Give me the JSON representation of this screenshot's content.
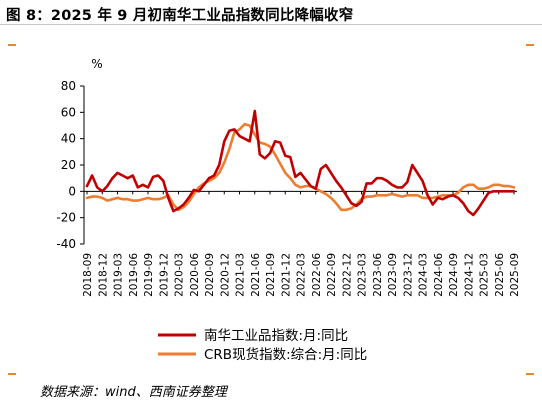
{
  "header": {
    "title": "图 8：2025 年 9 月初南华工业品指数同比降幅收窄"
  },
  "footer": {
    "source": "数据来源：wind、西南证券整理"
  },
  "colors": {
    "series1": "#c00000",
    "series2": "#ed7d31",
    "accent": "#e08a2f"
  },
  "chart_data": {
    "type": "line",
    "ylabel": "%",
    "ylim": [
      -40,
      80
    ],
    "yticks": [
      -40,
      -20,
      0,
      20,
      40,
      60,
      80
    ],
    "grid": false,
    "legend_position": "bottom",
    "x_tick_labels": [
      "2018-09",
      "2018-12",
      "2019-03",
      "2019-06",
      "2019-09",
      "2019-12",
      "2020-03",
      "2020-06",
      "2020-09",
      "2020-12",
      "2021-03",
      "2021-06",
      "2021-09",
      "2021-12",
      "2022-03",
      "2022-06",
      "2022-09",
      "2022-12",
      "2023-03",
      "2023-06",
      "2023-09",
      "2023-12",
      "2024-03",
      "2024-06",
      "2024-09",
      "2024-12",
      "2025-03",
      "2025-06",
      "2025-09"
    ],
    "x": [
      "2018-09",
      "2018-10",
      "2018-11",
      "2018-12",
      "2019-01",
      "2019-02",
      "2019-03",
      "2019-04",
      "2019-05",
      "2019-06",
      "2019-07",
      "2019-08",
      "2019-09",
      "2019-10",
      "2019-11",
      "2019-12",
      "2020-01",
      "2020-02",
      "2020-03",
      "2020-04",
      "2020-05",
      "2020-06",
      "2020-07",
      "2020-08",
      "2020-09",
      "2020-10",
      "2020-11",
      "2020-12",
      "2021-01",
      "2021-02",
      "2021-03",
      "2021-04",
      "2021-05",
      "2021-06",
      "2021-07",
      "2021-08",
      "2021-09",
      "2021-10",
      "2021-11",
      "2021-12",
      "2022-01",
      "2022-02",
      "2022-03",
      "2022-04",
      "2022-05",
      "2022-06",
      "2022-07",
      "2022-08",
      "2022-09",
      "2022-10",
      "2022-11",
      "2022-12",
      "2023-01",
      "2023-02",
      "2023-03",
      "2023-04",
      "2023-05",
      "2023-06",
      "2023-07",
      "2023-08",
      "2023-09",
      "2023-10",
      "2023-11",
      "2023-12",
      "2024-01",
      "2024-02",
      "2024-03",
      "2024-04",
      "2024-05",
      "2024-06",
      "2024-07",
      "2024-08",
      "2024-09",
      "2024-10",
      "2024-11",
      "2024-12",
      "2025-01",
      "2025-02",
      "2025-03",
      "2025-04",
      "2025-05",
      "2025-06",
      "2025-07",
      "2025-08",
      "2025-09"
    ],
    "series": [
      {
        "name": "南华工业品指数:月:同比",
        "values": [
          4,
          12,
          3,
          0,
          4,
          10,
          14,
          12,
          10,
          12,
          3,
          5,
          3,
          11,
          12,
          8,
          -5,
          -15,
          -13,
          -10,
          -5,
          1,
          0,
          5,
          10,
          12,
          20,
          38,
          46,
          47,
          42,
          40,
          38,
          61,
          28,
          25,
          29,
          38,
          37,
          27,
          26,
          11,
          14,
          9,
          4,
          2,
          17,
          20,
          14,
          8,
          3,
          -3,
          -9,
          -11,
          -8,
          6,
          6,
          10,
          10,
          8,
          5,
          3,
          3,
          7,
          20,
          14,
          8,
          -3,
          -10,
          -5,
          -6,
          -4,
          -3,
          -5,
          -9,
          -15,
          -18,
          -13,
          -7,
          -1,
          0,
          0,
          0,
          0,
          0
        ],
        "color": "#c00000"
      },
      {
        "name": "CRB现货指数:综合:月:同比",
        "values": [
          -5,
          -4,
          -4,
          -5,
          -7,
          -6,
          -5,
          -6,
          -6,
          -7,
          -7,
          -6,
          -5,
          -6,
          -6,
          -5,
          -3,
          -10,
          -14,
          -12,
          -8,
          -2,
          3,
          6,
          8,
          10,
          14,
          22,
          32,
          45,
          47,
          51,
          50,
          43,
          37,
          36,
          34,
          28,
          21,
          14,
          10,
          5,
          3,
          4,
          4,
          2,
          0,
          -2,
          -5,
          -9,
          -14,
          -14,
          -13,
          -10,
          -6,
          -4,
          -4,
          -3,
          -3,
          -3,
          -2,
          -3,
          -4,
          -3,
          -3,
          -3,
          -5,
          -5,
          -5,
          -4,
          -3,
          -3,
          -3,
          -1,
          3,
          5,
          5,
          2,
          2,
          3,
          5,
          5,
          4,
          4,
          3
        ],
        "color": "#ed7d31"
      }
    ]
  }
}
